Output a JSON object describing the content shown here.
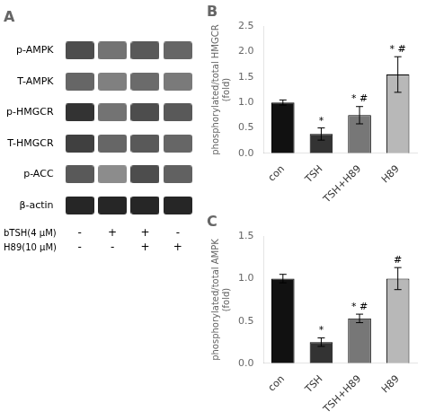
{
  "chart_data": [
    {
      "type": "heatmap",
      "title": "A",
      "categories": [
        null,
        null,
        null,
        null
      ],
      "y_categories": [
        "p-AMPK",
        "T-AMPK",
        "p-HMGCR",
        "T-HMGCR",
        "p-ACC",
        "β-actin"
      ],
      "cells": [
        [
          0.3,
          0.45,
          0.35,
          0.4
        ],
        [
          0.4,
          0.5,
          0.42,
          0.48
        ],
        [
          0.2,
          0.45,
          0.3,
          0.35
        ],
        [
          0.25,
          0.4,
          0.35,
          0.4
        ],
        [
          0.35,
          0.55,
          0.3,
          0.38
        ],
        [
          0.15,
          0.15,
          0.15,
          0.15
        ]
      ],
      "treatments": [
        {
          "name": "bTSH(4 μM)",
          "values": [
            "-",
            "+",
            "+",
            "-"
          ]
        },
        {
          "name": "H89(10 μM)",
          "values": [
            "-",
            "-",
            "+",
            "+"
          ]
        }
      ]
    },
    {
      "type": "bar",
      "title": "B",
      "categories": [
        "con",
        "TSH",
        "TSH+H89",
        "H89"
      ],
      "values": [
        1.0,
        0.38,
        0.75,
        1.55
      ],
      "errors": [
        0.05,
        0.12,
        0.17,
        0.35
      ],
      "colors": [
        "#111111",
        "#333333",
        "#777777",
        "#b8b8b8"
      ],
      "ylabel": "phosphorylated/total HMGCR\n(fold)",
      "ylim": [
        0,
        2.5
      ],
      "yticks": [
        {
          "value": 0.0,
          "label": "0.0"
        },
        0.5,
        {
          "value": 1.0,
          "label": "1.0"
        },
        1.5,
        {
          "value": 2.0,
          "label": "2.0"
        },
        2.5
      ],
      "grid": false,
      "annotations": [
        {
          "text": "*",
          "x": "TSH",
          "y": 0.53
        },
        {
          "text": "* #",
          "x": "TSH+H89",
          "y": 0.97
        },
        {
          "text": "* #",
          "x": "H89",
          "y": 1.95
        }
      ]
    },
    {
      "type": "bar",
      "title": "C",
      "categories": [
        "con",
        "TSH",
        "TSH+H89",
        "H89"
      ],
      "values": [
        1.0,
        0.25,
        0.53,
        1.0
      ],
      "errors": [
        0.05,
        0.05,
        0.05,
        0.13
      ],
      "colors": [
        "#111111",
        "#333333",
        "#777777",
        "#b8b8b8"
      ],
      "ylabel": "phosphorylated/total AMPK\n(fold)",
      "ylim": [
        0,
        1.5
      ],
      "yticks": [
        {
          "value": 0.0,
          "label": "0.0"
        },
        0.5,
        {
          "value": 1.0,
          "label": "1.0"
        },
        1.5
      ],
      "grid": false,
      "annotations": [
        {
          "text": "*",
          "x": "TSH",
          "y": 0.33
        },
        {
          "text": "* #",
          "x": "TSH+H89",
          "y": 0.61
        },
        {
          "text": "#",
          "x": "H89",
          "y": 1.16
        }
      ]
    }
  ]
}
